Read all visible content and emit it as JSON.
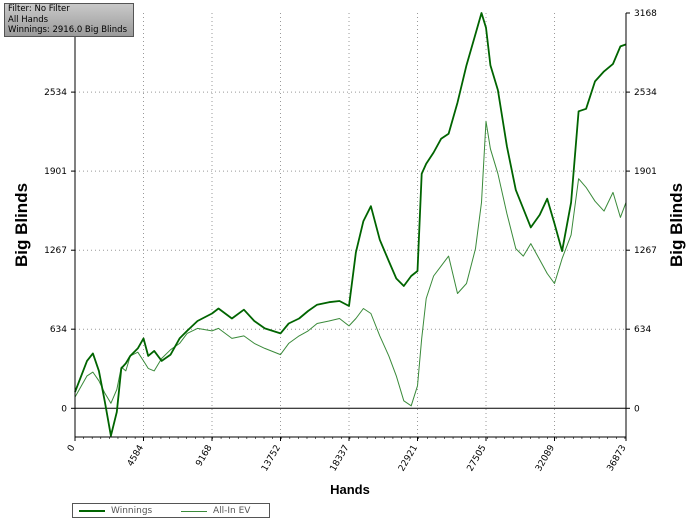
{
  "filter_box": {
    "line1": "Filter: No Filter",
    "line2": "All Hands",
    "line3": "Winnings: 2916.0 Big Blinds"
  },
  "chart_data": {
    "type": "line",
    "xlabel": "Hands",
    "ylabel_left": "Big Blinds",
    "ylabel_right": "Big Blinds",
    "xlim": [
      0,
      36873
    ],
    "ylim": [
      -230,
      3168
    ],
    "x_ticks": [
      "0",
      "4584",
      "9168",
      "13752",
      "18337",
      "22921",
      "27505",
      "32089",
      "36873"
    ],
    "y_ticks": [
      "0",
      "634",
      "1267",
      "1901",
      "2534",
      "3168"
    ],
    "grid": true,
    "legend_position": "bottom-left",
    "colors": {
      "winnings": "#006400",
      "allin_ev": "#3a8a3a",
      "axis": "#000000",
      "grid": "#999999"
    },
    "series": [
      {
        "name": "Winnings",
        "x": [
          0,
          800,
          1200,
          1600,
          2000,
          2400,
          2800,
          3100,
          3400,
          3700,
          4200,
          4584,
          4900,
          5300,
          5800,
          6400,
          7000,
          7500,
          8200,
          9168,
          9600,
          10500,
          11300,
          12000,
          12700,
          13752,
          14300,
          15000,
          15600,
          16200,
          17000,
          17700,
          18337,
          18800,
          19300,
          19800,
          20400,
          21000,
          21500,
          22000,
          22500,
          22921,
          23200,
          23500,
          24000,
          24500,
          25000,
          25600,
          26200,
          26800,
          27200,
          27505,
          27800,
          28300,
          28900,
          29500,
          30000,
          30500,
          31100,
          31600,
          32089,
          32600,
          33200,
          33700,
          34200,
          34800,
          35400,
          36000,
          36500,
          36873
        ],
        "y": [
          130,
          380,
          440,
          300,
          50,
          -220,
          -30,
          320,
          360,
          420,
          480,
          560,
          420,
          460,
          380,
          430,
          560,
          620,
          700,
          760,
          800,
          720,
          790,
          700,
          640,
          600,
          680,
          720,
          780,
          830,
          850,
          860,
          820,
          1250,
          1500,
          1620,
          1350,
          1180,
          1040,
          980,
          1060,
          1100,
          1880,
          1960,
          2050,
          2160,
          2200,
          2450,
          2750,
          3000,
          3168,
          3050,
          2750,
          2550,
          2100,
          1750,
          1600,
          1450,
          1550,
          1680,
          1480,
          1260,
          1650,
          2380,
          2400,
          2620,
          2700,
          2760,
          2900,
          2916
        ]
      },
      {
        "name": "All-In EV",
        "x": [
          0,
          800,
          1200,
          1600,
          2000,
          2400,
          2800,
          3100,
          3400,
          3700,
          4200,
          4584,
          4900,
          5300,
          5800,
          6400,
          7000,
          7500,
          8200,
          9168,
          9600,
          10500,
          11300,
          12000,
          12700,
          13752,
          14300,
          15000,
          15600,
          16200,
          17000,
          17700,
          18337,
          18800,
          19300,
          19800,
          20400,
          21000,
          21500,
          22000,
          22500,
          22921,
          23200,
          23500,
          24000,
          24500,
          25000,
          25600,
          26200,
          26800,
          27200,
          27505,
          27800,
          28300,
          28900,
          29500,
          30000,
          30500,
          31100,
          31600,
          32089,
          32600,
          33200,
          33700,
          34200,
          34800,
          35400,
          36000,
          36500,
          36873
        ],
        "y": [
          90,
          260,
          290,
          220,
          120,
          40,
          150,
          330,
          300,
          420,
          450,
          380,
          320,
          300,
          400,
          470,
          520,
          600,
          640,
          620,
          640,
          560,
          580,
          520,
          480,
          430,
          520,
          580,
          620,
          680,
          700,
          720,
          660,
          720,
          800,
          760,
          580,
          420,
          260,
          60,
          20,
          180,
          560,
          880,
          1060,
          1140,
          1220,
          920,
          1000,
          1280,
          1650,
          2300,
          2080,
          1880,
          1560,
          1280,
          1220,
          1320,
          1190,
          1080,
          1000,
          1200,
          1390,
          1840,
          1770,
          1660,
          1580,
          1730,
          1530,
          1650
        ]
      }
    ]
  }
}
